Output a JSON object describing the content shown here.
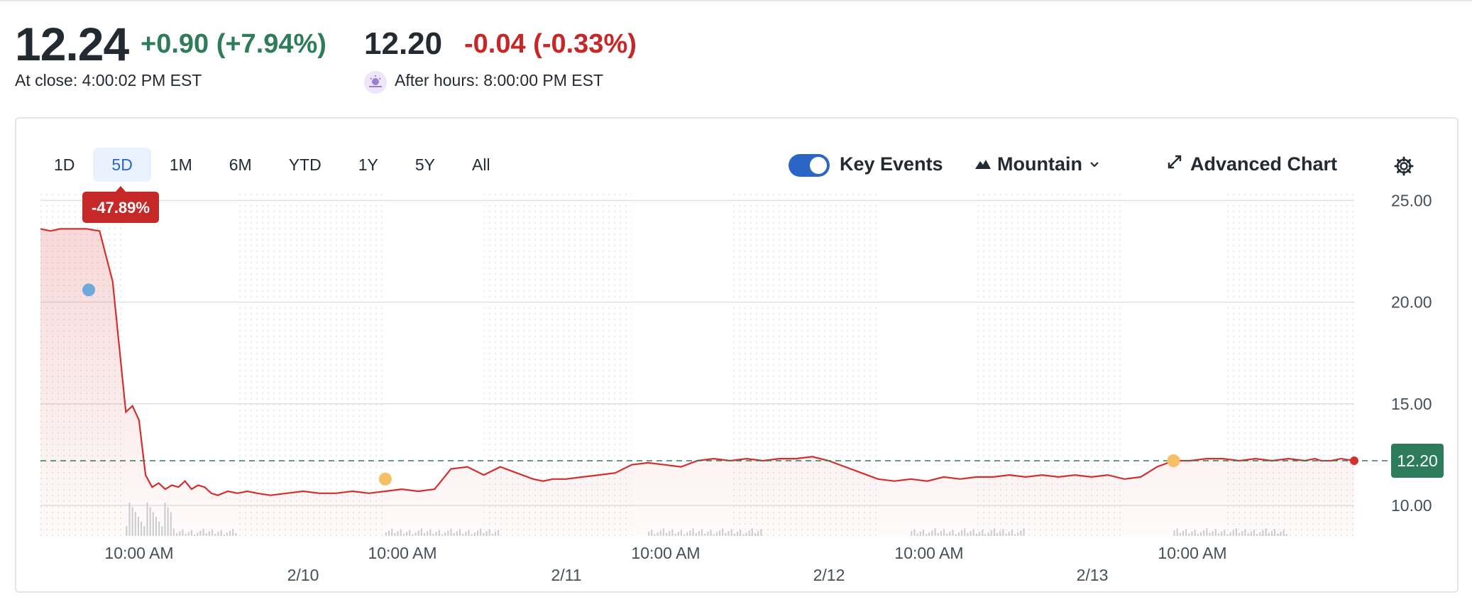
{
  "quote": {
    "close_price": "12.24",
    "close_change": "+0.90 (+7.94%)",
    "close_label": "At close: 4:00:02 PM EST",
    "after_price": "12.20",
    "after_change": "-0.04 (-0.33%)",
    "after_label": "After hours: 8:00:00 PM EST"
  },
  "toolbar": {
    "ranges": [
      "1D",
      "5D",
      "1M",
      "6M",
      "YTD",
      "1Y",
      "5Y",
      "All"
    ],
    "active_range": "5D",
    "key_events_label": "Key Events",
    "key_events_on": true,
    "chart_type_label": "Mountain",
    "advanced_chart_label": "Advanced Chart"
  },
  "colors": {
    "accent": "#2b66c7",
    "up": "#2e7d5a",
    "down": "#c62828",
    "line": "#d32f2f",
    "event_blue": "#6fa8dc",
    "event_yellow": "#f5c065"
  },
  "chart_data": {
    "type": "area",
    "y_ticks": [
      "25.00",
      "20.00",
      "15.00",
      "10.00"
    ],
    "ylim": [
      8.5,
      25.5
    ],
    "reference_price": 12.2,
    "reference_label": "12.20",
    "change_badge": "-47.89%",
    "x_time_labels": [
      "10:00 AM",
      "10:00 AM",
      "10:00 AM",
      "10:00 AM",
      "10:00 AM"
    ],
    "x_date_labels": [
      "2/10",
      "2/11",
      "2/12",
      "2/13"
    ],
    "grid": true,
    "series": [
      {
        "x": [
          0,
          3,
          6,
          10,
          14,
          18,
          22,
          26,
          28,
          30,
          32,
          34,
          36,
          38,
          40,
          42,
          44,
          46,
          48,
          50,
          52,
          54,
          57,
          60,
          63,
          66,
          70,
          75,
          80,
          85,
          90,
          95,
          100,
          105,
          110,
          115,
          120,
          125,
          130,
          135,
          140,
          145,
          150,
          153,
          156,
          160,
          165,
          170,
          175,
          180,
          185,
          190,
          195,
          200,
          205,
          210,
          215,
          220,
          225,
          230,
          235,
          240,
          245,
          250,
          255,
          260,
          265,
          270,
          275,
          280,
          285,
          290,
          295,
          300,
          305,
          310,
          315,
          320,
          325,
          330,
          335,
          340,
          345,
          350,
          355,
          360,
          365,
          370,
          375,
          380,
          385,
          388,
          390,
          393,
          396,
          400
        ],
        "y": [
          23.6,
          23.5,
          23.6,
          23.6,
          23.6,
          23.5,
          21.0,
          14.6,
          14.9,
          14.2,
          11.5,
          10.9,
          11.1,
          10.8,
          11.0,
          10.9,
          11.2,
          10.8,
          11.0,
          10.9,
          10.6,
          10.5,
          10.7,
          10.6,
          10.7,
          10.6,
          10.5,
          10.6,
          10.7,
          10.6,
          10.6,
          10.7,
          10.6,
          10.7,
          10.8,
          10.7,
          10.8,
          11.8,
          11.9,
          11.5,
          11.9,
          11.6,
          11.3,
          11.2,
          11.3,
          11.3,
          11.4,
          11.5,
          11.6,
          12.0,
          12.1,
          12.0,
          11.9,
          12.2,
          12.3,
          12.2,
          12.3,
          12.2,
          12.3,
          12.3,
          12.4,
          12.2,
          11.9,
          11.6,
          11.3,
          11.2,
          11.3,
          11.2,
          11.4,
          11.3,
          11.4,
          11.4,
          11.5,
          11.4,
          11.5,
          11.4,
          11.5,
          11.4,
          11.5,
          11.3,
          11.4,
          11.9,
          12.2,
          12.2,
          12.3,
          12.3,
          12.2,
          12.3,
          12.2,
          12.3,
          12.2,
          12.3,
          12.2,
          12.2,
          12.3,
          12.2
        ]
      }
    ],
    "key_events": [
      {
        "x": 14.7,
        "y": 20.6,
        "color": "blue"
      },
      {
        "x": 105,
        "y": 11.3,
        "color": "yellow"
      },
      {
        "x": 345,
        "y": 12.2,
        "color": "yellow"
      }
    ]
  }
}
